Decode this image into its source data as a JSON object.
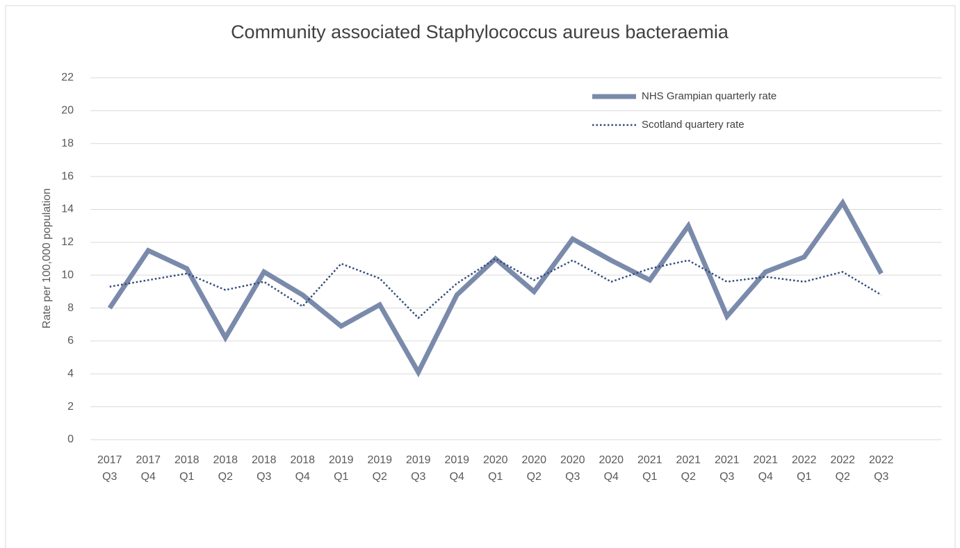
{
  "chart_data": {
    "type": "line",
    "title": "Community associated Staphylococcus aureus bacteraemia",
    "y_label": "Rate per 100,000 population",
    "categories": [
      "2017 Q3",
      "2017 Q4",
      "2018 Q1",
      "2018 Q2",
      "2018 Q3",
      "2018 Q4",
      "2019 Q1",
      "2019 Q2",
      "2019 Q3",
      "2019 Q4",
      "2020 Q1",
      "2020 Q2",
      "2020 Q3",
      "2020 Q4",
      "2021 Q1",
      "2021 Q2",
      "2021 Q3",
      "2021 Q4",
      "2022 Q1",
      "2022 Q2",
      "2022 Q3"
    ],
    "series": [
      {
        "name": "NHS Grampian quarterly rate",
        "color": "#7a8aab",
        "style": "solid",
        "values": [
          8.0,
          11.5,
          10.4,
          6.2,
          10.2,
          8.8,
          6.9,
          8.2,
          4.1,
          8.8,
          11.0,
          9.0,
          12.2,
          10.9,
          9.7,
          13.0,
          7.5,
          10.2,
          11.1,
          14.4,
          10.1
        ]
      },
      {
        "name": "Scotland quartery rate",
        "color": "#2f4a7c",
        "style": "dotted",
        "values": [
          9.3,
          9.7,
          10.1,
          9.1,
          9.6,
          8.1,
          10.7,
          9.8,
          7.4,
          9.5,
          11.0,
          9.7,
          10.9,
          9.6,
          10.4,
          10.9,
          9.6,
          9.9,
          9.6,
          10.2,
          8.8
        ]
      }
    ],
    "ylim": [
      0,
      22
    ],
    "yticks": [
      0,
      2,
      4,
      6,
      8,
      10,
      12,
      14,
      16,
      18,
      20,
      22
    ],
    "grid": true,
    "legend": "upper right"
  }
}
